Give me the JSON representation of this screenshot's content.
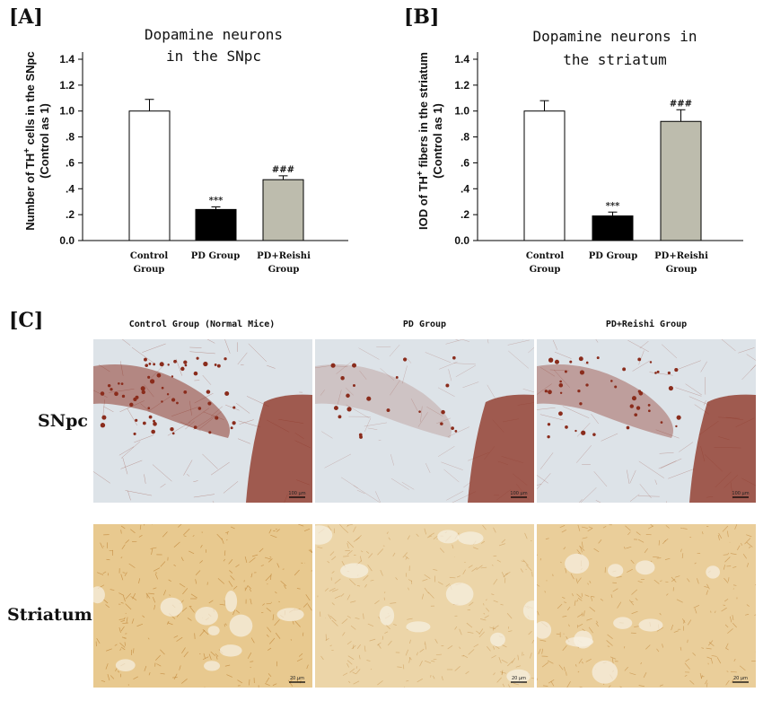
{
  "panels": {
    "a_label": "[A]",
    "b_label": "[B]",
    "c_label": "[C]"
  },
  "chart_data": [
    {
      "type": "bar",
      "title": [
        "Dopamine neurons",
        "in the SNpc"
      ],
      "ylabel_line1": "Number of TH",
      "ylabel_sup": "+",
      "ylabel_line1_end": " cells in the SNpc",
      "ylabel_line2": "(Control as 1)",
      "ylim": [
        0,
        1.4
      ],
      "yticks": [
        "0.0",
        ".2",
        ".4",
        ".6",
        ".8",
        "1.0",
        "1.2",
        "1.4"
      ],
      "categories": [
        [
          "Control",
          "Group"
        ],
        [
          "PD Group"
        ],
        [
          "PD+Reishi",
          "Group"
        ]
      ],
      "values": [
        1.0,
        0.24,
        0.47
      ],
      "errors": [
        0.09,
        0.02,
        0.03
      ],
      "significance": [
        "",
        "***",
        "###"
      ],
      "colors": [
        "#ffffff",
        "#000000",
        "#bdbcad"
      ]
    },
    {
      "type": "bar",
      "title": [
        "Dopamine neurons in",
        "the striatum"
      ],
      "ylabel_line1": "IOD of TH",
      "ylabel_sup": "+",
      "ylabel_line1_end": " fibers in the striatum",
      "ylabel_line2": "(Control as 1)",
      "ylim": [
        0,
        1.4
      ],
      "yticks": [
        "0.0",
        ".2",
        ".4",
        ".6",
        ".8",
        "1.0",
        "1.2",
        "1.4"
      ],
      "categories": [
        [
          "Control",
          "Group"
        ],
        [
          "PD Group"
        ],
        [
          "PD+Reishi",
          "Group"
        ]
      ],
      "values": [
        1.0,
        0.19,
        0.92
      ],
      "errors": [
        0.08,
        0.03,
        0.09
      ],
      "significance": [
        "",
        "***",
        "###"
      ],
      "colors": [
        "#ffffff",
        "#000000",
        "#bdbcad"
      ]
    }
  ],
  "micrographs": {
    "columns": [
      "Control Group (Normal Mice)",
      "PD Group",
      "PD+Reishi Group"
    ],
    "rows": [
      "SNpc",
      "Striatum"
    ],
    "scale_labels": [
      [
        "100 μm",
        "100 μm",
        "100 μm"
      ],
      [
        "20 μm",
        "20 μm",
        "20 μm"
      ]
    ],
    "colors": {
      "snpc_bg": "#dde3e8",
      "snpc_stain": "#8a2c1c",
      "striatum_bg": "#e8c98f",
      "striatum_stain": "#b36f1c"
    }
  }
}
